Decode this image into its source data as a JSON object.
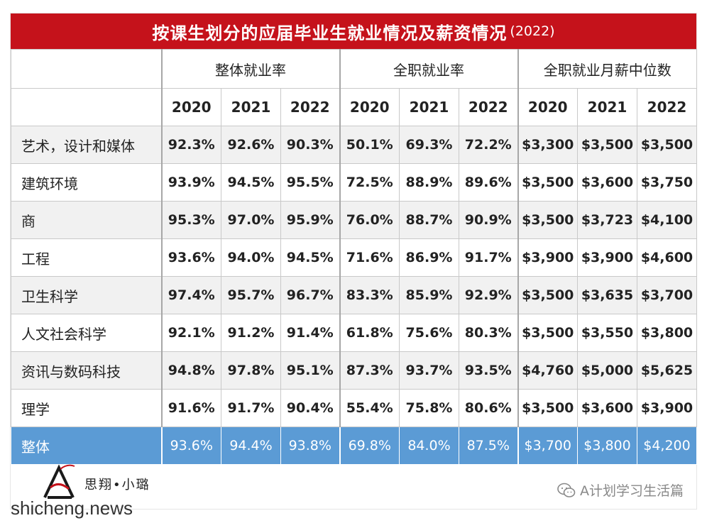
{
  "title": {
    "main": "按课生划分的应届毕业生就业情况及薪资情况",
    "year": "(2022)"
  },
  "groups": [
    "整体就业率",
    "全职就业率",
    "全职就业月薪中位数"
  ],
  "years": [
    "2020",
    "2021",
    "2022",
    "2020",
    "2021",
    "2022",
    "2020",
    "2021",
    "2022"
  ],
  "rows": [
    {
      "label": "艺术，设计和媒体",
      "values": [
        "92.3%",
        "92.6%",
        "90.3%",
        "50.1%",
        "69.3%",
        "72.2%",
        "$3,300",
        "$3,500",
        "$3,500"
      ]
    },
    {
      "label": "建筑环境",
      "values": [
        "93.9%",
        "94.5%",
        "95.5%",
        "72.5%",
        "88.9%",
        "89.6%",
        "$3,500",
        "$3,600",
        "$3,750"
      ]
    },
    {
      "label": "商",
      "values": [
        "95.3%",
        "97.0%",
        "95.9%",
        "76.0%",
        "88.7%",
        "90.9%",
        "$3,500",
        "$3,723",
        "$4,100"
      ]
    },
    {
      "label": "工程",
      "values": [
        "93.6%",
        "94.0%",
        "94.5%",
        "71.6%",
        "86.9%",
        "91.7%",
        "$3,900",
        "$3,900",
        "$4,600"
      ]
    },
    {
      "label": "卫生科学",
      "values": [
        "97.4%",
        "95.7%",
        "96.7%",
        "83.3%",
        "85.9%",
        "92.9%",
        "$3,500",
        "$3,635",
        "$3,700"
      ]
    },
    {
      "label": "人文社会科学",
      "values": [
        "92.1%",
        "91.2%",
        "91.4%",
        "61.8%",
        "75.6%",
        "80.3%",
        "$3,500",
        "$3,550",
        "$3,800"
      ]
    },
    {
      "label": "资讯与数码科技",
      "values": [
        "94.8%",
        "97.8%",
        "95.1%",
        "87.3%",
        "93.7%",
        "93.5%",
        "$4,760",
        "$5,000",
        "$5,625"
      ]
    },
    {
      "label": "理学",
      "values": [
        "91.6%",
        "91.7%",
        "90.4%",
        "55.4%",
        "75.8%",
        "80.6%",
        "$3,500",
        "$3,600",
        "$3,900"
      ]
    },
    {
      "label": "整体",
      "values": [
        "93.6%",
        "94.4%",
        "93.8%",
        "69.8%",
        "84.0%",
        "87.5%",
        "$3,700",
        "$3,800",
        "$4,200"
      ]
    }
  ],
  "footer": {
    "brand": "思翔•小璐",
    "watermark": "shicheng.news",
    "wechat_account": "A计划学习生活篇",
    "wechat_icon": "wechat-icon"
  },
  "colors": {
    "title_bg": "#c5121b",
    "total_row_bg": "#5b9bd5",
    "alt_row_bg": "#f1f1f1"
  }
}
